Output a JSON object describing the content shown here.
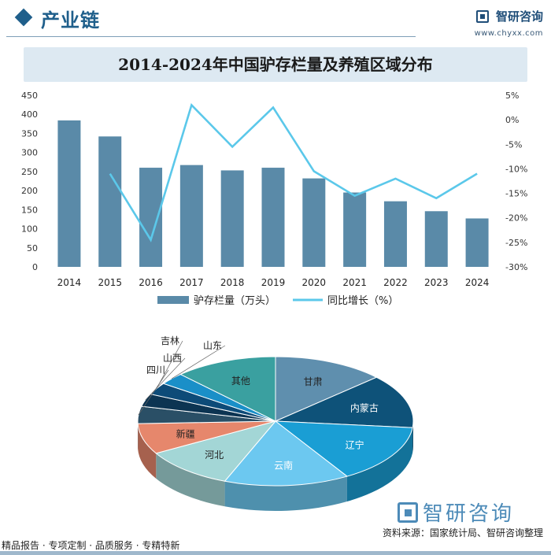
{
  "header": {
    "title": "产业链",
    "brand_name": "智研咨询",
    "brand_url": "www.chyxx.com"
  },
  "footer": {
    "tagline": "精品报告 · 专项定制 · 品质服务 · 专精特新",
    "source_logo": "智研咨询",
    "source": "资料来源：国家统计局、智研咨询整理"
  },
  "colors": {
    "bar": "#5a8aa8",
    "line": "#5bc8ea",
    "title_band": "#dde9f2"
  },
  "chart_data": [
    {
      "type": "bar",
      "title": "2014-2024年中国驴存栏量及养殖区域分布",
      "categories": [
        "2014",
        "2015",
        "2016",
        "2017",
        "2018",
        "2019",
        "2020",
        "2021",
        "2022",
        "2023",
        "2024"
      ],
      "series": [
        {
          "name": "驴存栏量（万头）",
          "type": "bar",
          "axis": "left",
          "values": [
            384,
            342,
            260,
            267,
            253,
            260,
            232,
            195,
            172,
            146,
            127
          ]
        },
        {
          "name": "同比增长（%）",
          "type": "line",
          "axis": "right",
          "values": [
            null,
            -11,
            -24.5,
            3,
            -5.5,
            2.5,
            -10.5,
            -15.5,
            -12,
            -16,
            -11
          ]
        }
      ],
      "ylim_left": [
        0,
        450
      ],
      "yticks_left": [
        "450",
        "400",
        "350",
        "300",
        "250",
        "200",
        "150",
        "100",
        "50",
        "0"
      ],
      "ylim_right": [
        -30,
        5
      ],
      "yticks_right": [
        "5%",
        "0%",
        "-5%",
        "-10%",
        "-15%",
        "-20%",
        "-25%",
        "-30%"
      ],
      "legend_position": "bottom",
      "grid": false
    },
    {
      "type": "pie",
      "style": "3d",
      "labels": [
        "甘肃",
        "内蒙古",
        "辽宁",
        "云南",
        "河北",
        "新疆",
        "四川",
        "山西",
        "吉林",
        "山东",
        "其他"
      ],
      "values": [
        13.1,
        13.5,
        14.7,
        14.7,
        10.7,
        7.7,
        4.3,
        3.2,
        3.0,
        3.0,
        12.1
      ],
      "colors": [
        "#5f8fae",
        "#0e5279",
        "#1a9ed4",
        "#6cc8f0",
        "#a3d6d6",
        "#e6876c",
        "#2a4f66",
        "#0c3452",
        "#0d4b78",
        "#1a8fc8",
        "#3aa0a0"
      ]
    }
  ]
}
